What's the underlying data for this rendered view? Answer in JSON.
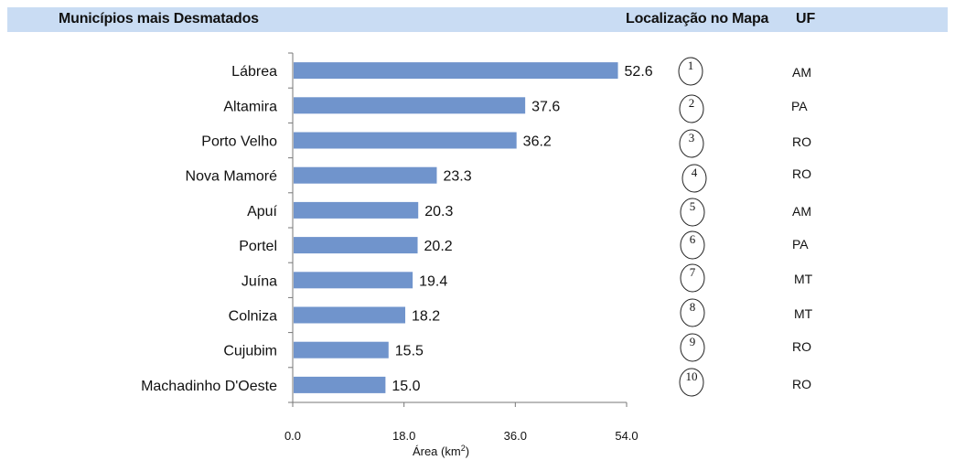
{
  "header": {
    "title": "Municípios mais Desmatados",
    "map_label": "Localização no Mapa",
    "uf_label": "UF"
  },
  "chart_data": {
    "type": "bar",
    "orientation": "horizontal",
    "categories": [
      "Lábrea",
      "Altamira",
      "Porto Velho",
      "Nova Mamoré",
      "Apuí",
      "Portel",
      "Juína",
      "Colniza",
      "Cujubim",
      "Machadinho D'Oeste"
    ],
    "values": [
      52.6,
      37.6,
      36.2,
      23.3,
      20.3,
      20.2,
      19.4,
      18.2,
      15.5,
      15.0
    ],
    "value_labels": [
      "52.6",
      "37.6",
      "36.2",
      "23.3",
      "20.3",
      "20.2",
      "19.4",
      "18.2",
      "15.5",
      "15.0"
    ],
    "xticks": [
      "0.0",
      "18.0",
      "36.0",
      "54.0"
    ],
    "xlim": [
      0,
      54
    ],
    "xlabel_main": "Área (km",
    "xlabel_sup": "2",
    "xlabel_end": ")",
    "grid": false,
    "bar_color": "#7094cc"
  },
  "map_positions": [
    "1",
    "2",
    "3",
    "4",
    "5",
    "6",
    "7",
    "8",
    "9",
    "10"
  ],
  "uf": [
    "AM",
    "PA",
    "RO",
    "RO",
    "AM",
    "PA",
    "MT",
    "MT",
    "RO",
    "RO"
  ]
}
